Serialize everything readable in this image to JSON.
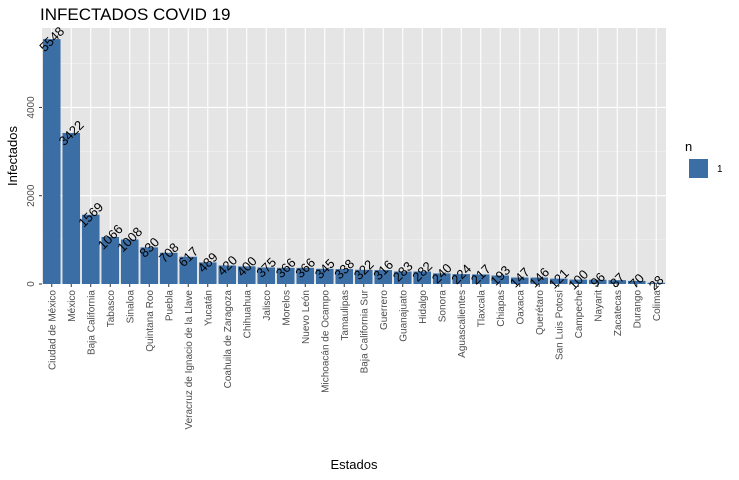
{
  "chart_data": {
    "type": "bar",
    "title": "INFECTADOS COVID 19",
    "xlabel": "Estados",
    "ylabel": "Infectados",
    "ylim": [
      0,
      5800
    ],
    "yticks": [
      0,
      2000,
      4000
    ],
    "grid": true,
    "legend_position": "right",
    "legend": {
      "title": "n",
      "entries": [
        "1"
      ]
    },
    "categories": [
      "Ciudad de México",
      "México",
      "Baja California",
      "Tabasco",
      "Sinaloa",
      "Quintana Roo",
      "Puebla",
      "Veracruz de Ignacio de la Llave",
      "Yucatán",
      "Coahuila de Zaragoza",
      "Chihuahua",
      "Jalisco",
      "Morelos",
      "Nuevo León",
      "Michoacán de Ocampo",
      "Tamaulipas",
      "Baja California Sur",
      "Guerrero",
      "Guanajuato",
      "Hidalgo",
      "Sonora",
      "Aguascalientes",
      "Tlaxcala",
      "Chiapas",
      "Oaxaca",
      "Querétaro",
      "San Luis Potosí",
      "Campeche",
      "Nayarit",
      "Zacatecas",
      "Durango",
      "Colima"
    ],
    "values": [
      5548,
      3422,
      1569,
      1066,
      1008,
      830,
      708,
      617,
      489,
      420,
      400,
      375,
      366,
      366,
      345,
      338,
      322,
      316,
      283,
      282,
      240,
      224,
      217,
      193,
      147,
      146,
      121,
      100,
      96,
      87,
      70,
      28
    ],
    "bar_color": "#3a6ea5",
    "panel_color": "#e5e5e5"
  }
}
